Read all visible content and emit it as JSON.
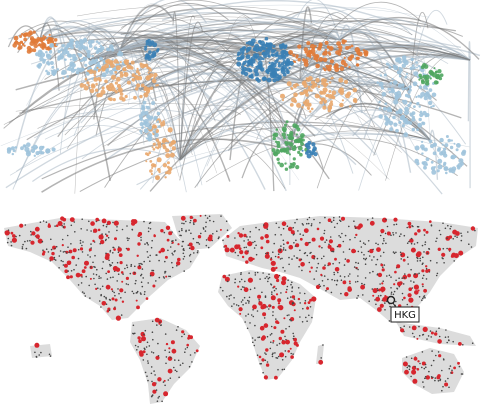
{
  "annotation": {
    "label": "HKG"
  }
}
